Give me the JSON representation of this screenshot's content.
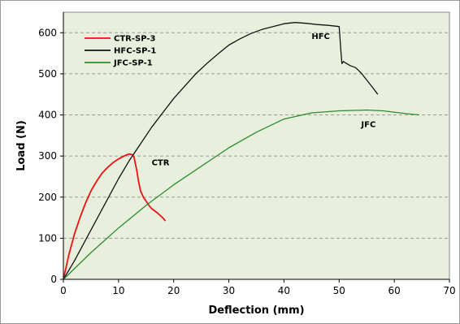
{
  "chart_data": {
    "type": "line",
    "title": "",
    "xlabel": "Deflection (mm)",
    "ylabel": "Load (N)",
    "xlim": [
      0,
      70
    ],
    "ylim": [
      0,
      650
    ],
    "xticks": [
      0,
      10,
      20,
      30,
      40,
      50,
      60,
      70
    ],
    "yticks": [
      0,
      100,
      200,
      300,
      400,
      500,
      600
    ],
    "grid": "horizontal-dashed",
    "background": "#e8efdd",
    "legend_position": "top-left",
    "series": [
      {
        "name": "CTR-SP-3",
        "color": "#ee1111",
        "x": [
          0,
          0.5,
          1,
          2,
          3,
          4,
          5,
          6,
          7,
          8,
          9,
          10,
          11,
          11.5,
          12,
          12.5,
          12.8,
          13,
          13.3,
          13.6,
          14,
          14.5,
          15,
          15.5,
          16,
          17,
          18,
          18.5
        ],
        "y": [
          0,
          30,
          60,
          110,
          150,
          185,
          215,
          238,
          258,
          272,
          284,
          293,
          300,
          303,
          305,
          303,
          298,
          285,
          265,
          240,
          215,
          200,
          190,
          180,
          172,
          162,
          150,
          142
        ]
      },
      {
        "name": "HFC-SP-1",
        "color": "#111111",
        "x": [
          0,
          2,
          4,
          6,
          8,
          10,
          12,
          14,
          16,
          18,
          20,
          22,
          24,
          26,
          28,
          30,
          32,
          34,
          36,
          38,
          40,
          42,
          44,
          46,
          48,
          50,
          50.3,
          50.5,
          50.8,
          51,
          52,
          53,
          54,
          55,
          56,
          57
        ],
        "y": [
          0,
          45,
          95,
          145,
          195,
          245,
          290,
          330,
          370,
          405,
          440,
          470,
          500,
          525,
          548,
          570,
          585,
          598,
          608,
          615,
          622,
          625,
          623,
          620,
          618,
          615,
          560,
          525,
          530,
          528,
          520,
          515,
          502,
          485,
          468,
          450
        ]
      },
      {
        "name": "JFC-SP-1",
        "color": "#2e8b2e",
        "x": [
          0,
          5,
          10,
          15,
          20,
          25,
          30,
          35,
          40,
          45,
          50,
          55,
          58,
          61,
          63,
          64.5
        ],
        "y": [
          0,
          65,
          125,
          180,
          230,
          275,
          320,
          358,
          390,
          405,
          410,
          412,
          410,
          405,
          402,
          400
        ]
      }
    ],
    "annotations": [
      {
        "text": "CTR",
        "x": 16,
        "y": 278
      },
      {
        "text": "HFC",
        "x": 45,
        "y": 585
      },
      {
        "text": "JFC",
        "x": 54,
        "y": 370
      }
    ]
  }
}
